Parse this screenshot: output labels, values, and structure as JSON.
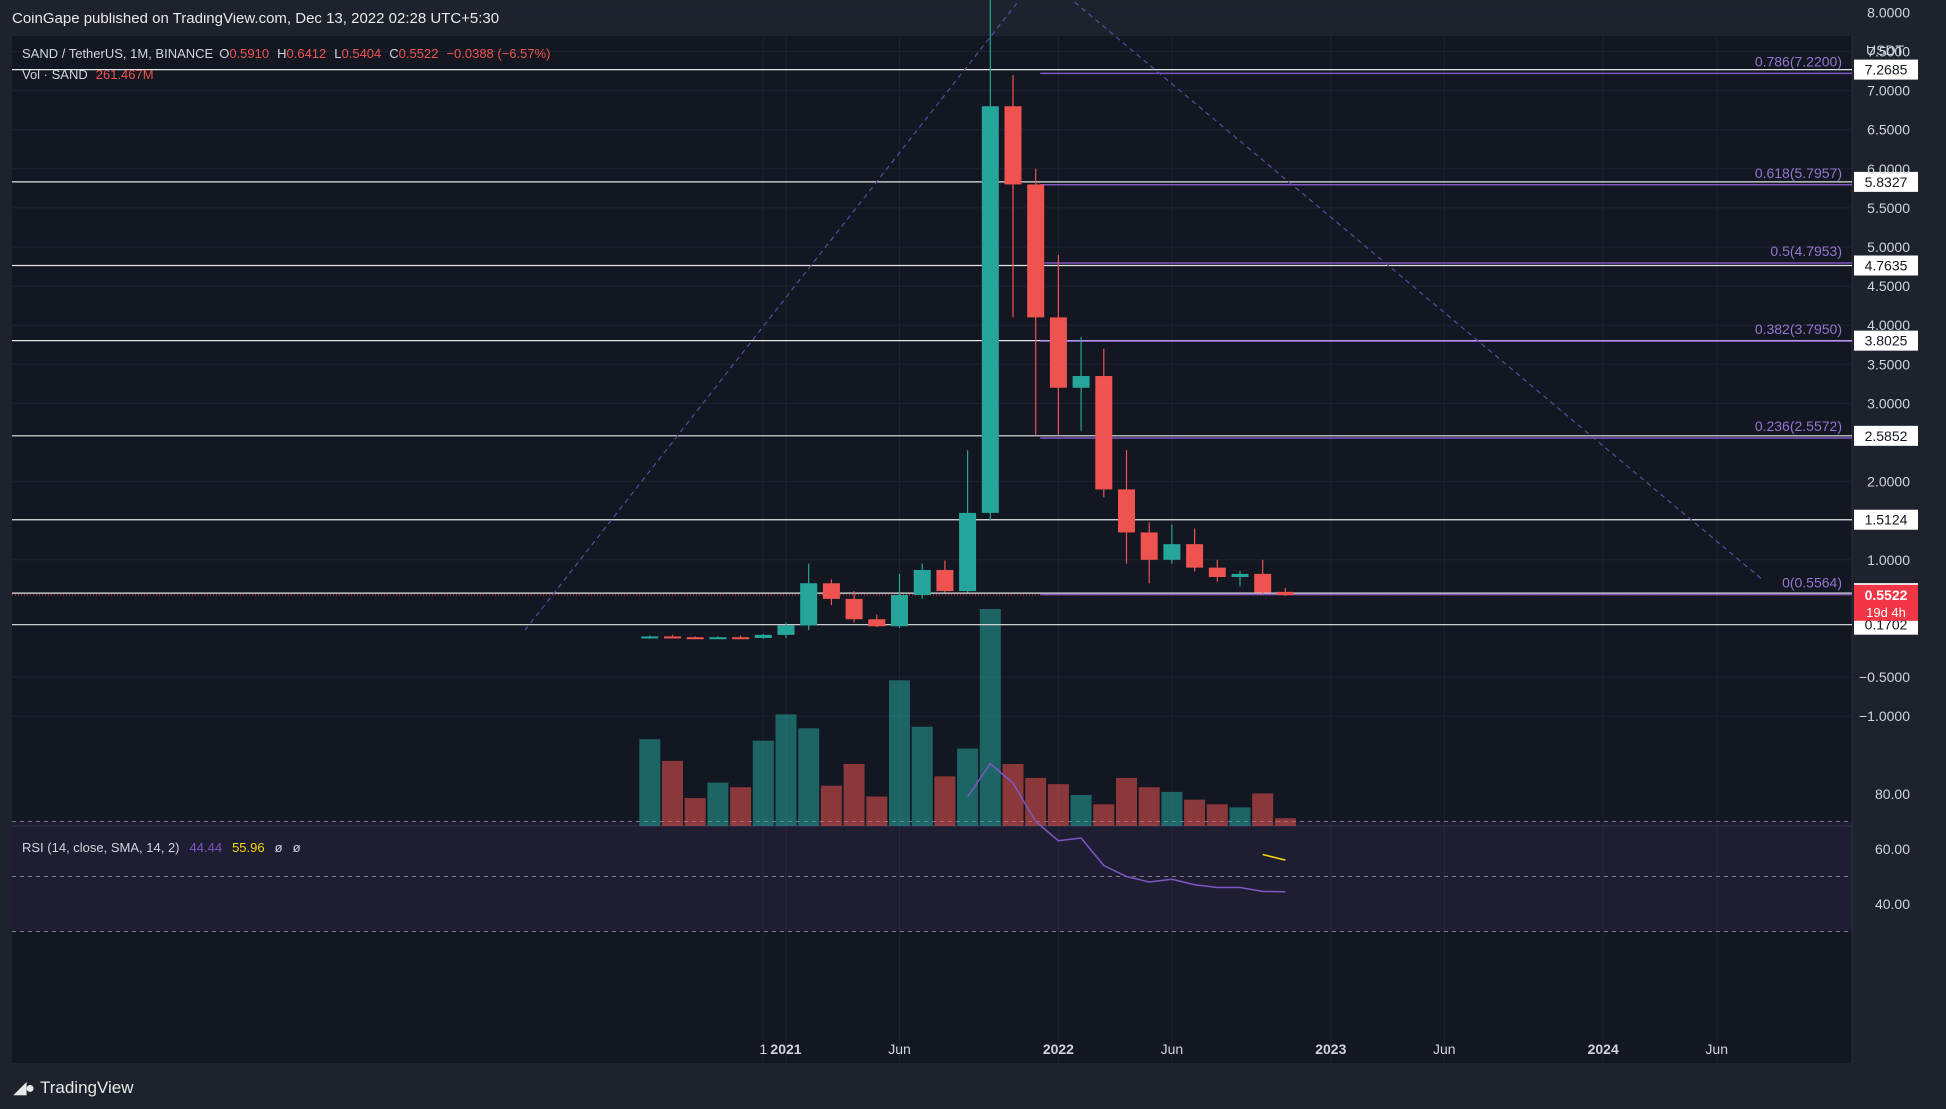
{
  "header": {
    "published": "CoinGape published on TradingView.com, Dec 13, 2022 02:28 UTC+5:30"
  },
  "footer": {
    "brand": "TradingView"
  },
  "legend": {
    "symbol": "SAND / TetherUS, 1M, BINANCE",
    "o_label": "O",
    "o": "0.5910",
    "h_label": "H",
    "h": "0.6412",
    "l_label": "L",
    "l": "0.5404",
    "c_label": "C",
    "c": "0.5522",
    "change": "−0.0388 (−6.57%)",
    "vol_label": "Vol · SAND",
    "vol": "261.467M"
  },
  "rsi_legend": {
    "label": "RSI (14, close, SMA, 14, 2)",
    "rsi": "44.44",
    "sma": "55.96",
    "e1": "ø",
    "e2": "ø"
  },
  "colors": {
    "bg": "#131722",
    "up": "#26a69a",
    "down": "#ef5350",
    "fib": "#7e57c2",
    "rsi": "#7e57c2",
    "rsi_sma": "#f5d90a",
    "price_tag": "#f23645"
  },
  "chart_data": [
    {
      "type": "candlestick",
      "symbol": "SAND / TetherUS",
      "interval": "1M",
      "exchange": "BINANCE",
      "y_unit": "USDT",
      "y_ticks": [
        "8.0000",
        "7.5000",
        "7.0000",
        "6.5000",
        "6.0000",
        "5.5000",
        "5.0000",
        "4.5000",
        "4.0000",
        "3.5000",
        "3.0000",
        "2.0000",
        "1.0000",
        "−0.5000",
        "−1.0000"
      ],
      "y_tick_values": [
        8,
        7.5,
        7,
        6.5,
        6,
        5.5,
        5,
        4.5,
        4,
        3.5,
        3,
        2,
        1,
        -0.5,
        -1
      ],
      "x_ticks": [
        {
          "label": "1",
          "bold": false,
          "m": -1
        },
        {
          "label": "2021",
          "bold": true,
          "m": 0
        },
        {
          "label": "Jun",
          "bold": false,
          "m": 5
        },
        {
          "label": "2022",
          "bold": true,
          "m": 12
        },
        {
          "label": "Jun",
          "bold": false,
          "m": 17
        },
        {
          "label": "2023",
          "bold": true,
          "m": 24
        },
        {
          "label": "Jun",
          "bold": false,
          "m": 29
        },
        {
          "label": "2024",
          "bold": true,
          "m": 36
        },
        {
          "label": "Jun",
          "bold": false,
          "m": 41
        }
      ],
      "candles": [
        {
          "m": -6,
          "o": 0.0,
          "h": 0.03,
          "l": -0.01,
          "c": 0.02
        },
        {
          "m": -5,
          "o": 0.02,
          "h": 0.04,
          "l": 0.0,
          "c": 0.01
        },
        {
          "m": -4,
          "o": 0.01,
          "h": 0.02,
          "l": -0.01,
          "c": 0.0
        },
        {
          "m": -3,
          "o": 0.0,
          "h": 0.02,
          "l": -0.01,
          "c": 0.01
        },
        {
          "m": -2,
          "o": 0.01,
          "h": 0.03,
          "l": 0.0,
          "c": 0.0
        },
        {
          "m": -1,
          "o": 0.0,
          "h": 0.05,
          "l": -0.01,
          "c": 0.04
        },
        {
          "m": 0,
          "o": 0.04,
          "h": 0.2,
          "l": 0.0,
          "c": 0.16
        },
        {
          "m": 1,
          "o": 0.16,
          "h": 0.95,
          "l": 0.1,
          "c": 0.7
        },
        {
          "m": 2,
          "o": 0.7,
          "h": 0.75,
          "l": 0.42,
          "c": 0.5
        },
        {
          "m": 3,
          "o": 0.5,
          "h": 0.6,
          "l": 0.2,
          "c": 0.24
        },
        {
          "m": 4,
          "o": 0.24,
          "h": 0.3,
          "l": 0.14,
          "c": 0.15
        },
        {
          "m": 5,
          "o": 0.15,
          "h": 0.82,
          "l": 0.13,
          "c": 0.55
        },
        {
          "m": 6,
          "o": 0.55,
          "h": 0.95,
          "l": 0.5,
          "c": 0.87
        },
        {
          "m": 7,
          "o": 0.87,
          "h": 0.99,
          "l": 0.58,
          "c": 0.6
        },
        {
          "m": 8,
          "o": 0.6,
          "h": 2.4,
          "l": 0.58,
          "c": 1.6
        },
        {
          "m": 9,
          "o": 1.6,
          "h": 8.5,
          "l": 1.5,
          "c": 6.8
        },
        {
          "m": 10,
          "o": 6.8,
          "h": 7.2,
          "l": 4.1,
          "c": 5.8
        },
        {
          "m": 11,
          "o": 5.8,
          "h": 6.0,
          "l": 2.6,
          "c": 4.1
        },
        {
          "m": 12,
          "o": 4.1,
          "h": 4.9,
          "l": 2.6,
          "c": 3.2
        },
        {
          "m": 13,
          "o": 3.2,
          "h": 3.85,
          "l": 2.65,
          "c": 3.35
        },
        {
          "m": 14,
          "o": 3.35,
          "h": 3.7,
          "l": 1.8,
          "c": 1.9
        },
        {
          "m": 15,
          "o": 1.9,
          "h": 2.4,
          "l": 0.95,
          "c": 1.35
        },
        {
          "m": 16,
          "o": 1.35,
          "h": 1.48,
          "l": 0.7,
          "c": 1.0
        },
        {
          "m": 17,
          "o": 1.0,
          "h": 1.45,
          "l": 0.95,
          "c": 1.2
        },
        {
          "m": 18,
          "o": 1.2,
          "h": 1.4,
          "l": 0.85,
          "c": 0.9
        },
        {
          "m": 19,
          "o": 0.9,
          "h": 1.0,
          "l": 0.72,
          "c": 0.78
        },
        {
          "m": 20,
          "o": 0.78,
          "h": 0.86,
          "l": 0.66,
          "c": 0.82
        },
        {
          "m": 21,
          "o": 0.82,
          "h": 1.0,
          "l": 0.55,
          "c": 0.58
        },
        {
          "m": 22,
          "o": 0.59,
          "h": 0.64,
          "l": 0.54,
          "c": 0.55
        }
      ],
      "volume": [
        {
          "m": -6,
          "v": 0.56,
          "up": true
        },
        {
          "m": -5,
          "v": 0.42,
          "up": false
        },
        {
          "m": -4,
          "v": 0.18,
          "up": false
        },
        {
          "m": -3,
          "v": 0.28,
          "up": true
        },
        {
          "m": -2,
          "v": 0.25,
          "up": false
        },
        {
          "m": -1,
          "v": 0.55,
          "up": true
        },
        {
          "m": 0,
          "v": 0.72,
          "up": true
        },
        {
          "m": 1,
          "v": 0.63,
          "up": true
        },
        {
          "m": 2,
          "v": 0.26,
          "up": false
        },
        {
          "m": 3,
          "v": 0.4,
          "up": false
        },
        {
          "m": 4,
          "v": 0.19,
          "up": false
        },
        {
          "m": 5,
          "v": 0.94,
          "up": true
        },
        {
          "m": 6,
          "v": 0.64,
          "up": true
        },
        {
          "m": 7,
          "v": 0.32,
          "up": false
        },
        {
          "m": 8,
          "v": 0.5,
          "up": true
        },
        {
          "m": 9,
          "v": 1.4,
          "up": true
        },
        {
          "m": 10,
          "v": 0.4,
          "up": false
        },
        {
          "m": 11,
          "v": 0.31,
          "up": false
        },
        {
          "m": 12,
          "v": 0.27,
          "up": false
        },
        {
          "m": 13,
          "v": 0.2,
          "up": true
        },
        {
          "m": 14,
          "v": 0.14,
          "up": false
        },
        {
          "m": 15,
          "v": 0.31,
          "up": false
        },
        {
          "m": 16,
          "v": 0.25,
          "up": false
        },
        {
          "m": 17,
          "v": 0.22,
          "up": true
        },
        {
          "m": 18,
          "v": 0.17,
          "up": false
        },
        {
          "m": 19,
          "v": 0.14,
          "up": false
        },
        {
          "m": 20,
          "v": 0.12,
          "up": true
        },
        {
          "m": 21,
          "v": 0.21,
          "up": false
        },
        {
          "m": 22,
          "v": 0.05,
          "up": false
        }
      ],
      "horizontal_levels": [
        {
          "value": 8.5,
          "label": ""
        },
        {
          "value": 7.2685,
          "label": "7.2685"
        },
        {
          "value": 5.8327,
          "label": "5.8327"
        },
        {
          "value": 4.7635,
          "label": "4.7635"
        },
        {
          "value": 3.8025,
          "label": "3.8025"
        },
        {
          "value": 2.5852,
          "label": "2.5852"
        },
        {
          "value": 1.5124,
          "label": "1.5124"
        },
        {
          "value": 0.5736,
          "label": "0.5736"
        },
        {
          "value": 0.1702,
          "label": "0.1702"
        }
      ],
      "fib_levels": [
        {
          "value": 7.22,
          "label": "0.786(7.2200)"
        },
        {
          "value": 5.7957,
          "label": "0.618(5.7957)"
        },
        {
          "value": 4.7953,
          "label": "0.5(4.7953)"
        },
        {
          "value": 3.795,
          "label": "0.382(3.7950)"
        },
        {
          "value": 2.5572,
          "label": "0.236(2.5572)"
        },
        {
          "value": 0.5564,
          "label": "0(0.5564)"
        }
      ],
      "trend_lines": [
        {
          "m1": -11.5,
          "p1": 0.1,
          "m2": 11.2,
          "p2": 8.5
        },
        {
          "m1": 11.2,
          "p1": 8.5,
          "m2": 43,
          "p2": 0.75
        }
      ],
      "current_price": {
        "value": 0.5522,
        "label": "0.5522",
        "countdown": "19d 4h"
      }
    },
    {
      "type": "line",
      "name": "RSI (14, close, SMA, 14, 2)",
      "y_ticks": [
        "80.00",
        "60.00",
        "40.00"
      ],
      "y_tick_values": [
        80,
        60,
        40
      ],
      "bands": [
        70,
        50,
        30
      ],
      "rsi": [
        [
          8,
          79
        ],
        [
          9,
          91
        ],
        [
          10,
          84
        ],
        [
          11,
          70
        ],
        [
          12,
          63
        ],
        [
          13,
          64
        ],
        [
          14,
          54
        ],
        [
          15,
          50
        ],
        [
          16,
          48
        ],
        [
          17,
          49
        ],
        [
          18,
          47
        ],
        [
          19,
          46
        ],
        [
          20,
          46
        ],
        [
          21,
          44.6
        ],
        [
          22,
          44.44
        ]
      ],
      "sma": [
        [
          21,
          58
        ],
        [
          22,
          55.96
        ]
      ]
    }
  ]
}
